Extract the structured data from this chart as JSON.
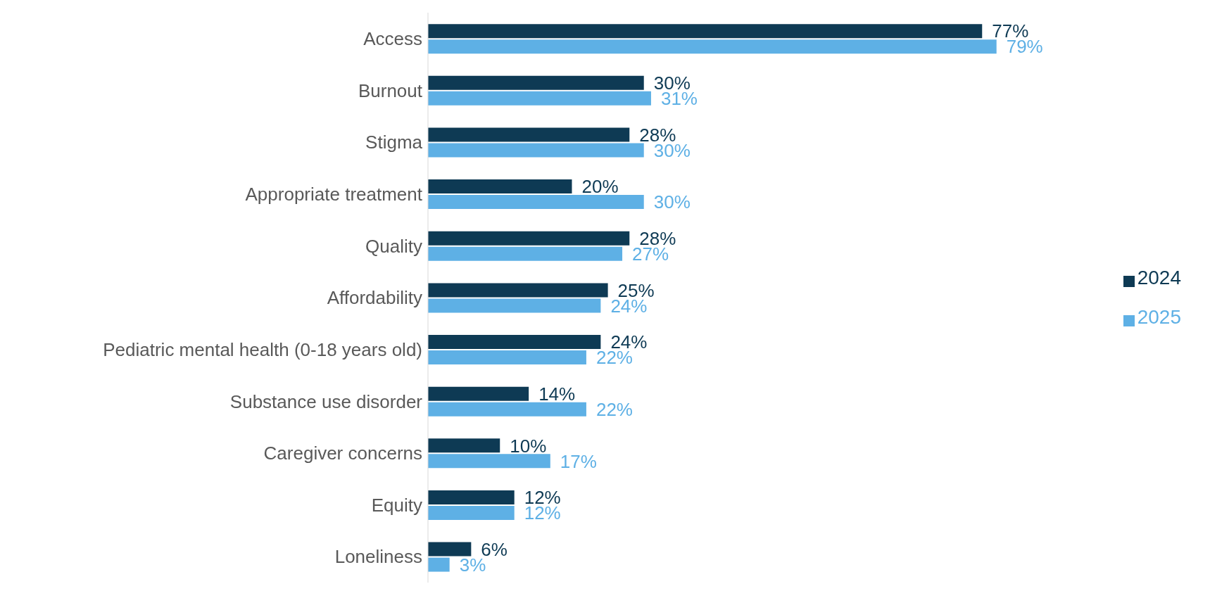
{
  "chart_data": {
    "type": "bar",
    "orientation": "horizontal",
    "categories": [
      "Access",
      "Burnout",
      "Stigma",
      "Appropriate treatment",
      "Quality",
      "Affordability",
      "Pediatric mental health (0-18 years old)",
      "Substance use disorder",
      "Caregiver concerns",
      "Equity",
      "Loneliness"
    ],
    "series": [
      {
        "name": "2024",
        "color": "#0e3a54",
        "values": [
          77,
          30,
          28,
          20,
          28,
          25,
          24,
          14,
          10,
          12,
          6
        ],
        "value_labels": [
          "77%",
          "30%",
          "28%",
          "20%",
          "28%",
          "25%",
          "24%",
          "14%",
          "10%",
          "12%",
          "6%"
        ]
      },
      {
        "name": "2025",
        "color": "#5eb0e5",
        "values": [
          79,
          31,
          30,
          30,
          27,
          24,
          22,
          22,
          17,
          12,
          3
        ],
        "value_labels": [
          "79%",
          "31%",
          "30%",
          "30%",
          "27%",
          "24%",
          "22%",
          "22%",
          "17%",
          "12%",
          "3%"
        ]
      }
    ],
    "legend": "right",
    "grid": false
  }
}
